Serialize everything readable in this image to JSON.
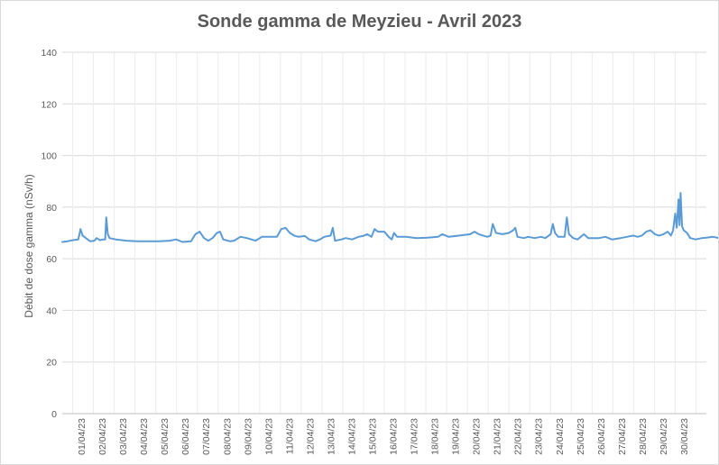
{
  "chart_data": {
    "type": "line",
    "title": "Sonde gamma de Meyzieu - Avril 2023",
    "xlabel": "",
    "ylabel": "Débit de dose gamma (nSv/h)",
    "ylim": [
      0,
      140
    ],
    "yticks": [
      0,
      20,
      40,
      60,
      80,
      100,
      120,
      140
    ],
    "categories": [
      "01/04/23",
      "02/04/23",
      "03/04/23",
      "04/04/23",
      "05/04/23",
      "06/04/23",
      "07/04/23",
      "08/04/23",
      "09/04/23",
      "10/04/23",
      "11/04/23",
      "12/04/23",
      "13/04/23",
      "14/04/23",
      "15/04/23",
      "16/04/23",
      "17/04/23",
      "18/04/23",
      "19/04/23",
      "20/04/23",
      "21/04/23",
      "22/04/23",
      "23/04/23",
      "24/04/23",
      "25/04/23",
      "26/04/23",
      "27/04/23",
      "28/04/23",
      "29/04/23",
      "30/04/23"
    ],
    "x_range_days": [
      0,
      30
    ],
    "grid": true,
    "color": "#5b9bd5",
    "series": [
      {
        "name": "",
        "points": [
          [
            0.0,
            66.5
          ],
          [
            0.25,
            66.8
          ],
          [
            0.5,
            67.2
          ],
          [
            0.75,
            67.5
          ],
          [
            0.85,
            71.5
          ],
          [
            0.95,
            69.0
          ],
          [
            1.1,
            68.0
          ],
          [
            1.3,
            66.8
          ],
          [
            1.5,
            67.0
          ],
          [
            1.6,
            68.0
          ],
          [
            1.75,
            67.2
          ],
          [
            1.9,
            67.5
          ],
          [
            2.0,
            67.5
          ],
          [
            2.05,
            76.0
          ],
          [
            2.12,
            69.5
          ],
          [
            2.2,
            68.0
          ],
          [
            2.5,
            67.5
          ],
          [
            3.0,
            67.0
          ],
          [
            3.5,
            66.8
          ],
          [
            4.0,
            66.8
          ],
          [
            4.5,
            66.8
          ],
          [
            5.0,
            67.0
          ],
          [
            5.3,
            67.5
          ],
          [
            5.6,
            66.5
          ],
          [
            6.0,
            66.8
          ],
          [
            6.2,
            69.5
          ],
          [
            6.4,
            70.5
          ],
          [
            6.6,
            68.0
          ],
          [
            6.8,
            67.0
          ],
          [
            7.0,
            68.0
          ],
          [
            7.2,
            70.0
          ],
          [
            7.35,
            70.5
          ],
          [
            7.5,
            67.5
          ],
          [
            7.8,
            66.8
          ],
          [
            8.0,
            67.0
          ],
          [
            8.3,
            68.5
          ],
          [
            8.6,
            68.0
          ],
          [
            9.0,
            67.0
          ],
          [
            9.3,
            68.5
          ],
          [
            9.6,
            68.5
          ],
          [
            10.0,
            68.5
          ],
          [
            10.2,
            71.5
          ],
          [
            10.4,
            72.0
          ],
          [
            10.6,
            70.0
          ],
          [
            10.8,
            69.0
          ],
          [
            11.0,
            68.5
          ],
          [
            11.3,
            68.8
          ],
          [
            11.5,
            67.5
          ],
          [
            11.8,
            66.8
          ],
          [
            12.0,
            67.5
          ],
          [
            12.2,
            68.5
          ],
          [
            12.5,
            69.0
          ],
          [
            12.6,
            72.0
          ],
          [
            12.7,
            67.0
          ],
          [
            13.0,
            67.5
          ],
          [
            13.2,
            68.0
          ],
          [
            13.5,
            67.5
          ],
          [
            13.8,
            68.5
          ],
          [
            14.0,
            68.8
          ],
          [
            14.2,
            69.5
          ],
          [
            14.4,
            68.5
          ],
          [
            14.55,
            71.5
          ],
          [
            14.7,
            70.5
          ],
          [
            15.0,
            70.5
          ],
          [
            15.2,
            68.5
          ],
          [
            15.35,
            67.5
          ],
          [
            15.45,
            70.0
          ],
          [
            15.6,
            68.5
          ],
          [
            16.0,
            68.5
          ],
          [
            16.5,
            68.0
          ],
          [
            17.0,
            68.2
          ],
          [
            17.5,
            68.5
          ],
          [
            17.7,
            69.5
          ],
          [
            18.0,
            68.5
          ],
          [
            18.5,
            69.0
          ],
          [
            19.0,
            69.5
          ],
          [
            19.2,
            70.5
          ],
          [
            19.4,
            69.5
          ],
          [
            19.6,
            69.0
          ],
          [
            19.8,
            68.5
          ],
          [
            19.95,
            69.0
          ],
          [
            20.05,
            73.5
          ],
          [
            20.2,
            70.0
          ],
          [
            20.5,
            69.5
          ],
          [
            20.8,
            70.0
          ],
          [
            21.0,
            71.0
          ],
          [
            21.1,
            72.0
          ],
          [
            21.2,
            68.5
          ],
          [
            21.5,
            68.0
          ],
          [
            21.7,
            68.5
          ],
          [
            22.0,
            68.0
          ],
          [
            22.3,
            68.5
          ],
          [
            22.5,
            68.0
          ],
          [
            22.75,
            69.5
          ],
          [
            22.85,
            73.5
          ],
          [
            22.95,
            70.0
          ],
          [
            23.1,
            68.5
          ],
          [
            23.4,
            68.5
          ],
          [
            23.5,
            76.0
          ],
          [
            23.6,
            69.5
          ],
          [
            23.8,
            68.0
          ],
          [
            24.0,
            67.5
          ],
          [
            24.3,
            69.5
          ],
          [
            24.5,
            68.0
          ],
          [
            25.0,
            68.0
          ],
          [
            25.3,
            68.5
          ],
          [
            25.6,
            67.5
          ],
          [
            26.0,
            68.0
          ],
          [
            26.3,
            68.5
          ],
          [
            26.6,
            69.0
          ],
          [
            26.8,
            68.5
          ],
          [
            27.0,
            69.0
          ],
          [
            27.2,
            70.5
          ],
          [
            27.4,
            71.0
          ],
          [
            27.6,
            69.5
          ],
          [
            27.8,
            69.0
          ],
          [
            28.0,
            69.5
          ],
          [
            28.2,
            70.5
          ],
          [
            28.35,
            69.0
          ],
          [
            28.45,
            71.0
          ],
          [
            28.55,
            77.5
          ],
          [
            28.62,
            72.0
          ],
          [
            28.7,
            83.0
          ],
          [
            28.75,
            73.0
          ],
          [
            28.8,
            85.5
          ],
          [
            28.87,
            72.5
          ],
          [
            28.95,
            71.0
          ],
          [
            29.1,
            70.0
          ],
          [
            29.25,
            68.0
          ],
          [
            29.5,
            67.5
          ],
          [
            29.8,
            68.0
          ],
          [
            30.0,
            68.2
          ],
          [
            30.3,
            68.5
          ],
          [
            30.6,
            68.0
          ],
          [
            30.9,
            68.0
          ]
        ]
      }
    ]
  }
}
